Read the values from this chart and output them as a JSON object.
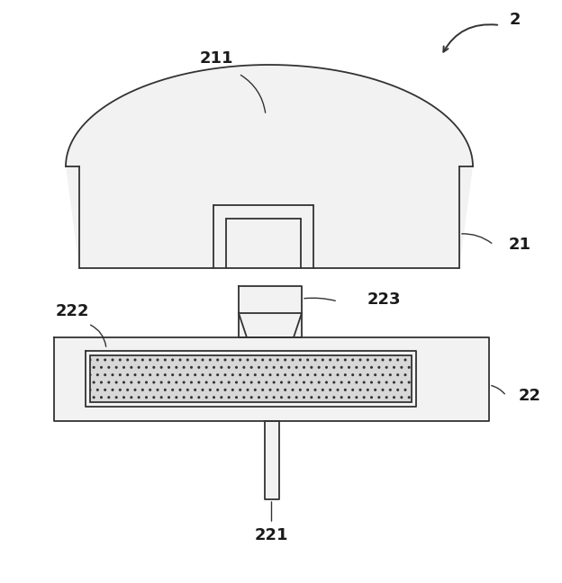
{
  "bg_color": "#ffffff",
  "line_color": "#333333",
  "fill_body": "#f2f2f2",
  "fill_sensor": "#d8d8d8",
  "fig_width": 6.24,
  "fig_height": 6.48,
  "label_2": "2",
  "label_21": "21",
  "label_211": "211",
  "label_22": "22",
  "label_221": "221",
  "label_222": "222",
  "label_223": "223"
}
